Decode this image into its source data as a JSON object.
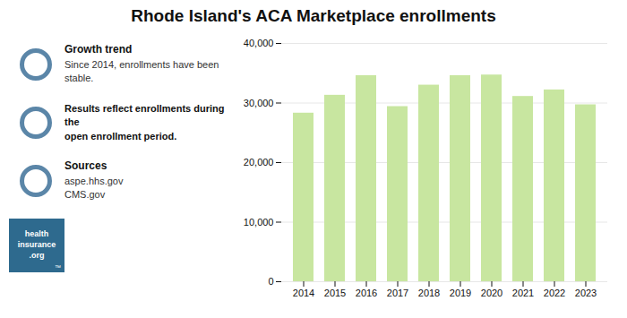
{
  "chart_data": {
    "type": "bar",
    "title": "Rhode Island's ACA Marketplace enrollments",
    "categories": [
      "2014",
      "2015",
      "2016",
      "2017",
      "2018",
      "2019",
      "2020",
      "2021",
      "2022",
      "2023"
    ],
    "values": [
      28300,
      31300,
      34600,
      29400,
      33000,
      34600,
      34700,
      31100,
      32200,
      29700
    ],
    "color": "#c8e6a0",
    "ylim": [
      0,
      40000
    ],
    "yticks": [
      0,
      {
        "value": 10000,
        "label": "10,000"
      },
      {
        "value": 20000,
        "label": "20,000"
      },
      {
        "value": 30000,
        "label": "30,000"
      },
      {
        "value": 40000,
        "label": "40,000"
      }
    ],
    "grid": true,
    "annotations": [
      {
        "title": "Growth trend",
        "text": "Since 2014, enrollments have been\nstable.",
        "color": "#5b86a8"
      },
      {
        "text": "Results reflect enrollments during the\nopen enrollment period.",
        "color": "#5b86a8"
      },
      {
        "title": "Sources",
        "text": "aspe.hhs.gov\nCMS.gov",
        "color": "#5b86a8"
      },
      {
        "text": "health\ninsurance\n.org",
        "subtext": "™",
        "color": "#2e6a8e"
      }
    ]
  }
}
